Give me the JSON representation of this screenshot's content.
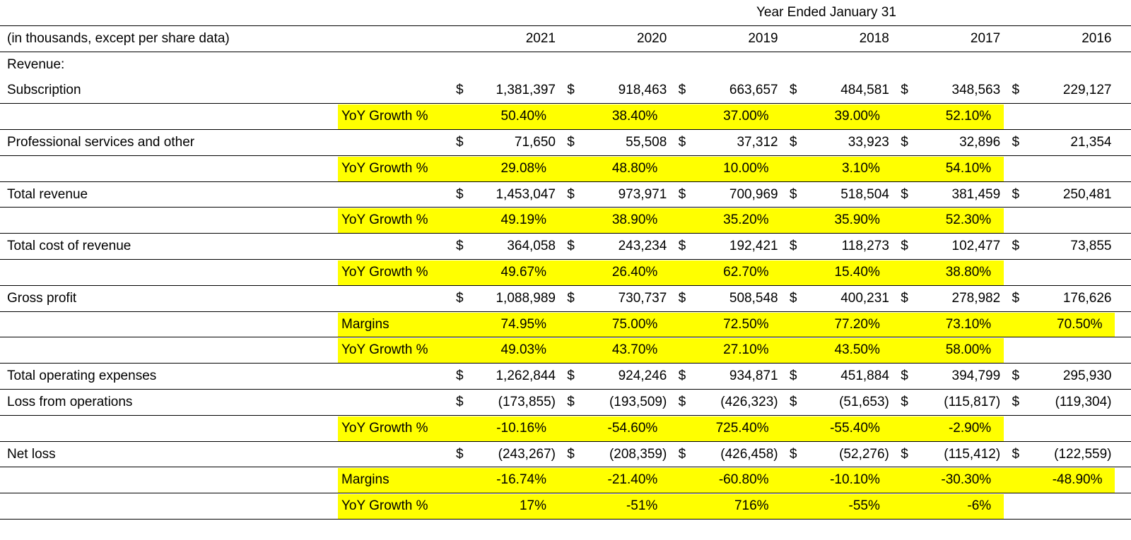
{
  "header": {
    "period": "Year Ended January 31",
    "label": "(in thousands, except per share data)",
    "years": [
      "2021",
      "2020",
      "2019",
      "2018",
      "2017",
      "2016"
    ]
  },
  "rows": [
    {
      "label": "Revenue:"
    },
    {
      "label": "Subscription",
      "currency": "$",
      "values": [
        "1,381,397",
        "918,463",
        "663,657",
        "484,581",
        "348,563",
        "229,127"
      ]
    },
    {
      "sublabel": "YoY Growth %",
      "values": [
        "50.40%",
        "38.40%",
        "37.00%",
        "39.00%",
        "52.10%",
        null
      ]
    },
    {
      "label": "Professional services and other",
      "currency": "$",
      "values": [
        "71,650",
        "55,508",
        "37,312",
        "33,923",
        "32,896",
        "21,354"
      ]
    },
    {
      "sublabel": "YoY Growth %",
      "values": [
        "29.08%",
        "48.80%",
        "10.00%",
        "3.10%",
        "54.10%",
        null
      ]
    },
    {
      "label": "Total revenue",
      "currency": "$",
      "values": [
        "1,453,047",
        "973,971",
        "700,969",
        "518,504",
        "381,459",
        "250,481"
      ]
    },
    {
      "sublabel": "YoY Growth %",
      "values": [
        "49.19%",
        "38.90%",
        "35.20%",
        "35.90%",
        "52.30%",
        null
      ]
    },
    {
      "label": "Total cost of revenue",
      "currency": "$",
      "values": [
        "364,058",
        "243,234",
        "192,421",
        "118,273",
        "102,477",
        "73,855"
      ]
    },
    {
      "sublabel": "YoY Growth %",
      "values": [
        "49.67%",
        "26.40%",
        "62.70%",
        "15.40%",
        "38.80%",
        null
      ]
    },
    {
      "label": "Gross profit",
      "currency": "$",
      "values": [
        "1,088,989",
        "730,737",
        "508,548",
        "400,231",
        "278,982",
        "176,626"
      ]
    },
    {
      "sublabel": "Margins",
      "values": [
        "74.95%",
        "75.00%",
        "72.50%",
        "77.20%",
        "73.10%",
        "70.50%"
      ]
    },
    {
      "sublabel": "YoY Growth %",
      "values": [
        "49.03%",
        "43.70%",
        "27.10%",
        "43.50%",
        "58.00%",
        null
      ]
    },
    {
      "label": "Total operating expenses",
      "currency": "$",
      "values": [
        "1,262,844",
        "924,246",
        "934,871",
        "451,884",
        "394,799",
        "295,930"
      ]
    },
    {
      "label": "Loss from operations",
      "currency": "$",
      "values": [
        "(173,855)",
        "(193,509)",
        "(426,323)",
        "(51,653)",
        "(115,817)",
        "(119,304)"
      ]
    },
    {
      "sublabel": "YoY Growth %",
      "values": [
        "-10.16%",
        "-54.60%",
        "725.40%",
        "-55.40%",
        "-2.90%",
        null
      ]
    },
    {
      "label": "Net loss",
      "currency": "$",
      "values": [
        "(243,267)",
        "(208,359)",
        "(426,458)",
        "(52,276)",
        "(115,412)",
        "(122,559)"
      ]
    },
    {
      "sublabel": "Margins",
      "values": [
        "-16.74%",
        "-21.40%",
        "-60.80%",
        "-10.10%",
        "-30.30%",
        "-48.90%"
      ]
    },
    {
      "sublabel": "YoY Growth %",
      "values": [
        "17%",
        "-51%",
        "716%",
        "-55%",
        "-6%",
        null
      ]
    }
  ]
}
